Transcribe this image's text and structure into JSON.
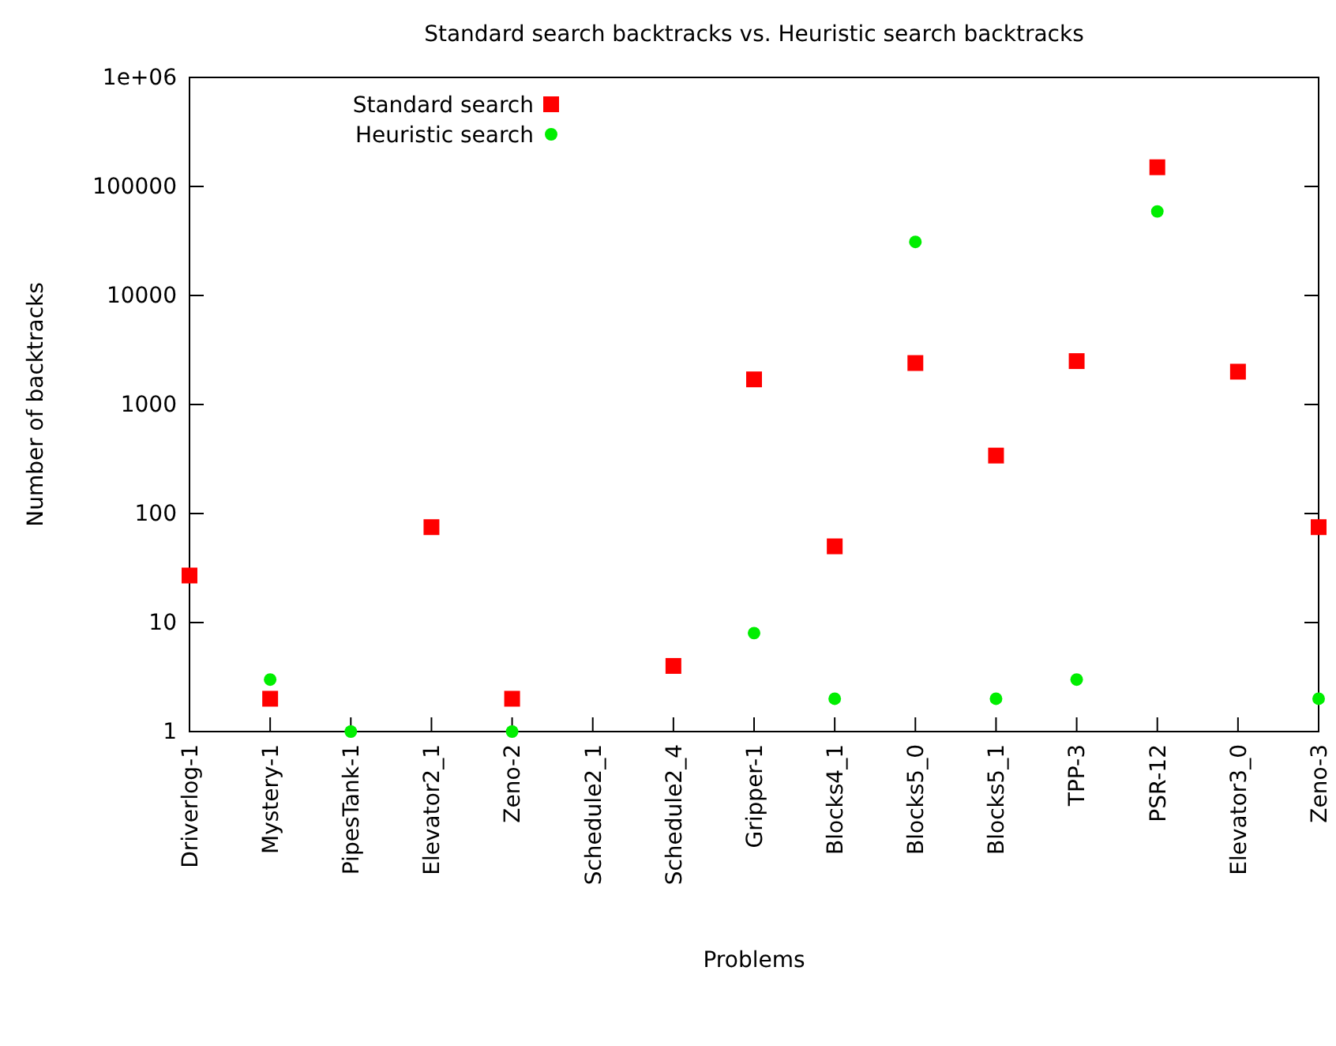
{
  "chart_data": {
    "type": "scatter",
    "title": "Standard search backtracks vs. Heuristic search backtracks",
    "xlabel": "Problems",
    "ylabel": "Number of backtracks",
    "categories": [
      "Driverlog-1",
      "Mystery-1",
      "PipesTank-1",
      "Elevator2_1",
      "Zeno-2",
      "Schedule2_1",
      "Schedule2_4",
      "Gripper-1",
      "Blocks4_1",
      "Blocks5_0",
      "Blocks5_1",
      "TPP-3",
      "PSR-12",
      "Elevator3_0",
      "Zeno-3"
    ],
    "series": [
      {
        "name": "Standard search",
        "color": "#ff0000",
        "marker": "square",
        "values": [
          27,
          2,
          null,
          75,
          2,
          null,
          4,
          1700,
          50,
          2400,
          340,
          2500,
          150000,
          2000,
          75
        ]
      },
      {
        "name": "Heuristic search",
        "color": "#00ee00",
        "marker": "circle",
        "values": [
          null,
          3,
          1,
          null,
          1,
          null,
          null,
          8,
          2,
          31000,
          2,
          3,
          59000,
          null,
          2
        ]
      }
    ],
    "log": true,
    "ylim": [
      1,
      1000000
    ],
    "yticks": [
      1,
      10,
      100,
      1000,
      10000,
      100000,
      {
        "value": 1000000,
        "label": "1e+06"
      }
    ],
    "grid": false,
    "legend": "top left"
  }
}
